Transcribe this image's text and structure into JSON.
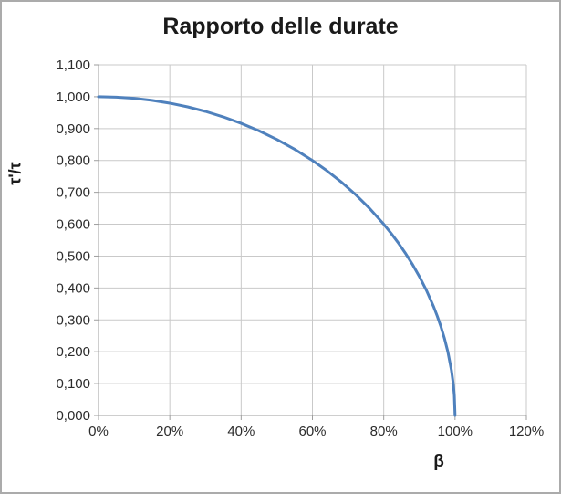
{
  "chart_data": {
    "type": "line",
    "title": "Rapporto delle durate",
    "xlabel": "β",
    "ylabel": "τ'/τ",
    "xlim": [
      0,
      120
    ],
    "ylim": [
      0,
      1.1
    ],
    "grid": true,
    "legend": "none",
    "x_tick_unit": "percent",
    "x_ticks": [
      0,
      20,
      40,
      60,
      80,
      100,
      120
    ],
    "x_tick_labels": [
      "0%",
      "20%",
      "40%",
      "60%",
      "80%",
      "100%",
      "120%"
    ],
    "y_ticks": [
      0,
      0.1,
      0.2,
      0.3,
      0.4,
      0.5,
      0.6,
      0.7,
      0.8,
      0.9,
      1.0,
      1.1
    ],
    "y_tick_labels": [
      "0,000",
      "0,100",
      "0,200",
      "0,300",
      "0,400",
      "0,500",
      "0,600",
      "0,700",
      "0,800",
      "0,900",
      "1,000",
      "1,100"
    ],
    "colors": {
      "series_line": "#4F81BD",
      "gridline": "#c9c9c9",
      "axis_line": "#9e9e9e",
      "text": "#2b2b2b",
      "frame_border": "#ababab"
    },
    "series": [
      {
        "color": "#4F81BD",
        "x": [
          0,
          5,
          10,
          15,
          20,
          25,
          30,
          35,
          40,
          45,
          50,
          55,
          60,
          64,
          68,
          72,
          76,
          80,
          82,
          84,
          86,
          88,
          90,
          92,
          94,
          95,
          96,
          97,
          98,
          99,
          99.5,
          99.8,
          100
        ],
        "y": [
          1.0,
          0.9987,
          0.995,
          0.9887,
          0.9798,
          0.9682,
          0.9539,
          0.9367,
          0.9165,
          0.893,
          0.866,
          0.8352,
          0.8,
          0.7684,
          0.7332,
          0.694,
          0.6499,
          0.6,
          0.5724,
          0.5426,
          0.5103,
          0.475,
          0.4359,
          0.3919,
          0.3412,
          0.3122,
          0.28,
          0.2431,
          0.199,
          0.1411,
          0.0999,
          0.0632,
          0.0
        ]
      }
    ]
  }
}
